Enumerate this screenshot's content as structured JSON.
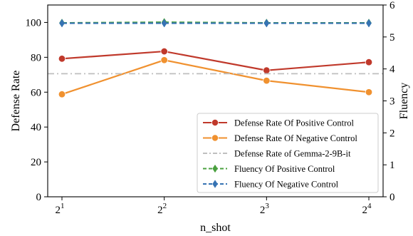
{
  "chart_data": {
    "type": "line",
    "x_categories": [
      "1",
      "2",
      "3",
      "4"
    ],
    "x_tick_base": "2",
    "xlabel": "n_shot",
    "ylabel_left": "Defense Rate",
    "ylabel_right": "Fluency",
    "ylim_left": [
      0,
      110
    ],
    "ylim_right": [
      0,
      6
    ],
    "yticks_left": [
      0,
      20,
      40,
      60,
      80,
      100
    ],
    "yticks_right": [
      0,
      1,
      2,
      3,
      4,
      5,
      6
    ],
    "grid": false,
    "legend_position": "lower-right",
    "series": [
      {
        "name": "Defense Rate Of Positive Control",
        "axis": "left",
        "values": [
          79.2,
          83.4,
          72.5,
          77.2
        ],
        "color": "#c0392b",
        "line_style": "solid",
        "marker": "circle"
      },
      {
        "name": "Defense Rate Of Negative Control",
        "axis": "left",
        "values": [
          58.8,
          78.4,
          66.6,
          60.0
        ],
        "color": "#f0912f",
        "line_style": "solid",
        "marker": "circle"
      },
      {
        "name": "Defense Rate of Gemma-2-9B-it",
        "axis": "left",
        "constant": 70.6,
        "color": "#bfbfbf",
        "line_style": "dashdot",
        "marker": "none"
      },
      {
        "name": "Fluency Of Positive Control",
        "axis": "right",
        "values": [
          5.44,
          5.46,
          5.44,
          5.44
        ],
        "color": "#4aa03f",
        "line_style": "dashed",
        "marker": "diamond"
      },
      {
        "name": "Fluency Of Negative Control",
        "axis": "right",
        "values": [
          5.43,
          5.43,
          5.43,
          5.43
        ],
        "color": "#3673b3",
        "line_style": "dashed",
        "marker": "diamond"
      }
    ]
  }
}
